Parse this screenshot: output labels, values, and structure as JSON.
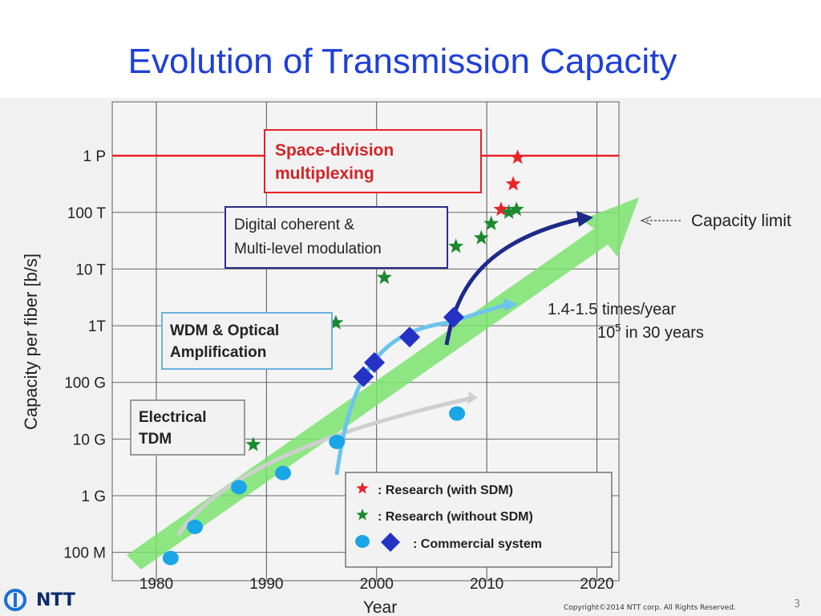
{
  "slide": {
    "title": "Evolution of Transmission Capacity",
    "brand": "NTT",
    "copyright": "Copyright©2014 NTT corp. All Rights Reserved.",
    "page_number": "3"
  },
  "colors": {
    "title": "#1f3fd9",
    "research_sdm": "#e8232a",
    "research_no_sdm": "#1a8a2e",
    "commercial_circle": "#1aa6e6",
    "commercial_diamond": "#2433c4",
    "trend_arrow": "#7be36f",
    "limit_arrow": "#1e2a8a",
    "sdm_line": "#e82025"
  },
  "chart_data": {
    "type": "scatter",
    "xlabel": "Year",
    "ylabel": "Capacity per fiber [b/s]",
    "xlim": [
      1976,
      2022
    ],
    "ylim_log10": [
      7.5,
      15.95
    ],
    "x_ticks": [
      1980,
      1990,
      2000,
      2010,
      2020
    ],
    "y_ticks": [
      {
        "label": "100 M",
        "log10": 8
      },
      {
        "label": "1 G",
        "log10": 9
      },
      {
        "label": "10 G",
        "log10": 10
      },
      {
        "label": "100 G",
        "log10": 11
      },
      {
        "label": "1T",
        "log10": 12
      },
      {
        "label": "10 T",
        "log10": 13
      },
      {
        "label": "100 T",
        "log10": 14
      },
      {
        "label": "1 P",
        "log10": 15
      }
    ],
    "grid": true,
    "legend_position": "bottom-right",
    "legend": [
      {
        "label": ": Research (with SDM)",
        "marker": "red-star"
      },
      {
        "label": ": Research (without SDM)",
        "marker": "green-star"
      },
      {
        "label": ": Commercial   system",
        "marker": "blue-circle-and-diamond"
      }
    ],
    "series": [
      {
        "name": "Research (with SDM)",
        "marker": "star",
        "points": [
          [
            2011.3,
            14.05
          ],
          [
            2012.4,
            14.5
          ],
          [
            2012.8,
            14.97
          ]
        ]
      },
      {
        "name": "Research (without SDM)",
        "marker": "star",
        "points": [
          [
            1988.8,
            9.9
          ],
          [
            1996.3,
            12.05
          ],
          [
            2000.7,
            12.85
          ],
          [
            2005.8,
            13.25
          ],
          [
            2007.2,
            13.4
          ],
          [
            2009.5,
            13.55
          ],
          [
            2010.4,
            13.8
          ],
          [
            2012.0,
            14.0
          ],
          [
            2012.7,
            14.05
          ]
        ]
      },
      {
        "name": "Commercial system (circle)",
        "marker": "circle",
        "points": [
          [
            1981.3,
            7.9
          ],
          [
            1983.5,
            8.45
          ],
          [
            1987.5,
            9.15
          ],
          [
            1991.5,
            9.4
          ],
          [
            1996.4,
            9.95
          ],
          [
            2007.3,
            10.45
          ]
        ]
      },
      {
        "name": "Commercial system (diamond)",
        "marker": "diamond",
        "points": [
          [
            1998.8,
            11.1
          ],
          [
            1999.8,
            11.35
          ],
          [
            2003.0,
            11.8
          ],
          [
            2007.0,
            12.15
          ]
        ]
      }
    ],
    "reference_lines": [
      {
        "label": "Space-division\nmultiplexing",
        "log10": 15
      }
    ],
    "annotations": [
      {
        "text": "Digital coherent &\nMulti-level modulation",
        "color": "#2a2f8a"
      },
      {
        "text": "WDM & Optical\nAmplification",
        "color": "#6ab3dc"
      },
      {
        "text": "Electrical\nTDM",
        "color": "#9a9a9a"
      },
      {
        "text": "Capacity limit"
      },
      {
        "text_line1": "1.4-1.5 times/year",
        "text_line2_base": "10",
        "text_line2_exp": "5",
        "text_line2_rest": " in 30 years"
      }
    ]
  }
}
